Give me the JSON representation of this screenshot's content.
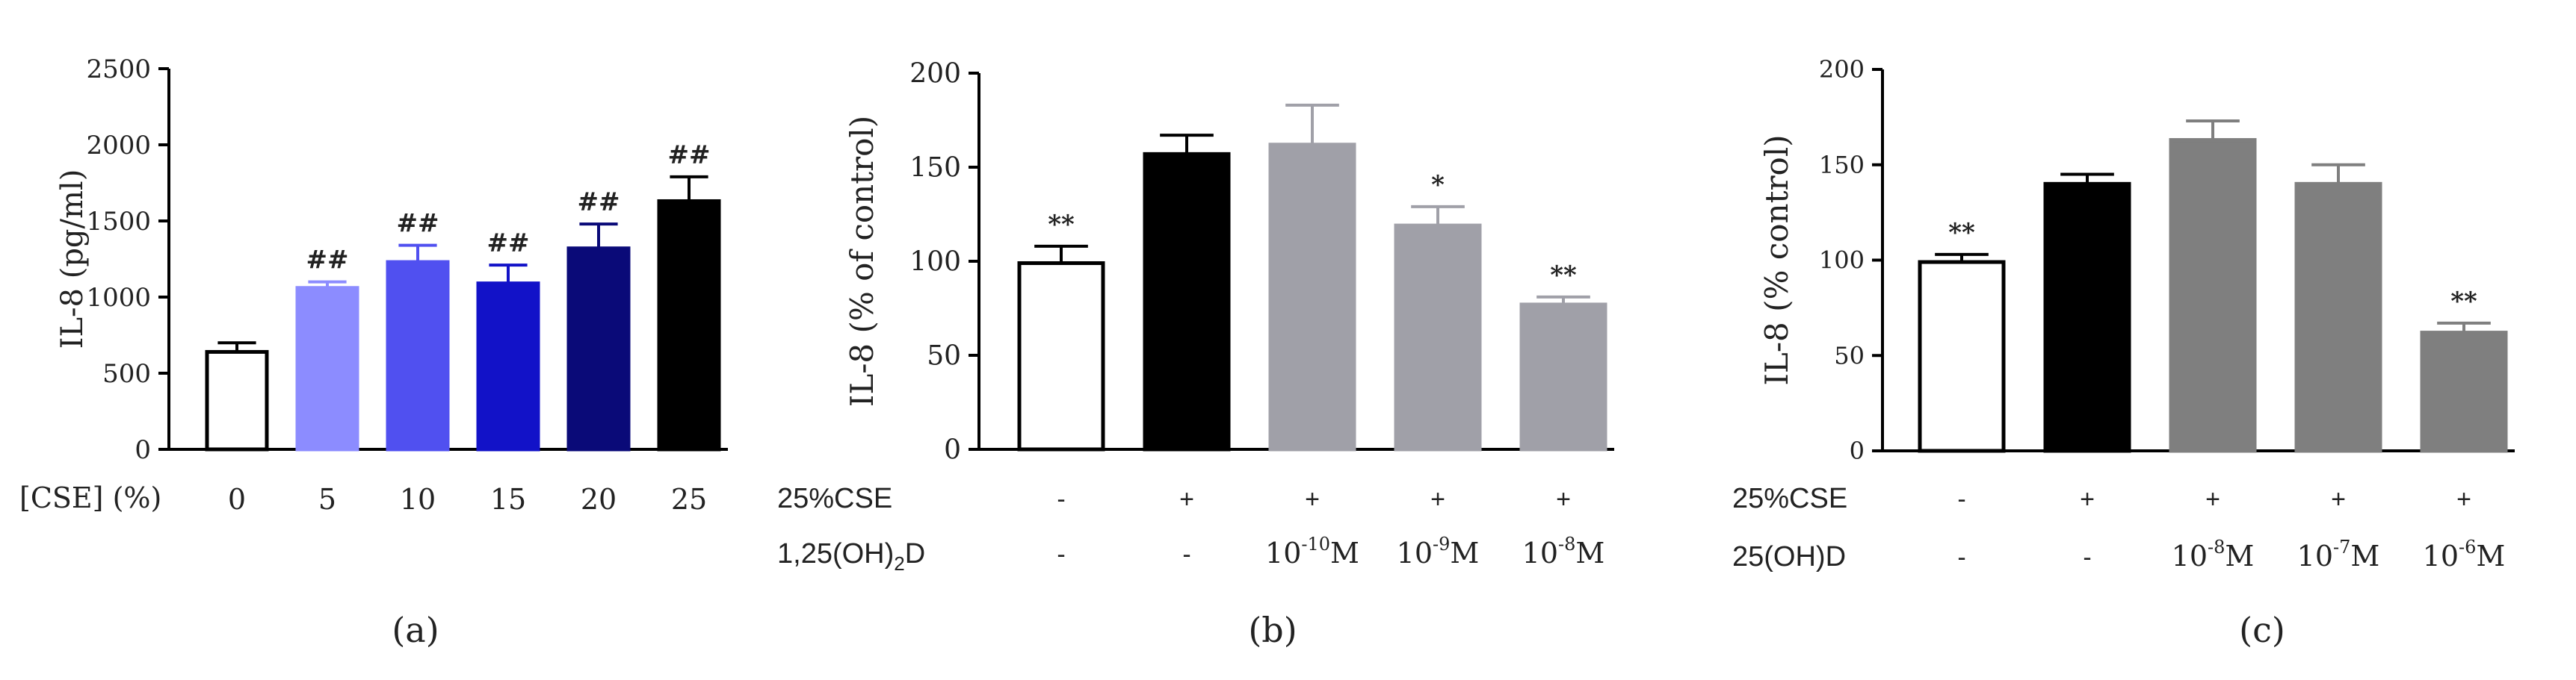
{
  "chart_data": [
    {
      "panel": "(a)",
      "type": "bar",
      "ylabel": "IL-8 (pg/ml)",
      "ylim": [
        0,
        2500
      ],
      "yticks": [
        "0",
        "500",
        "1000",
        "1500",
        "2000",
        "2500"
      ],
      "ytick_values": [
        0,
        500,
        1000,
        1500,
        2000,
        2500
      ],
      "xlabel": "[CSE] (%)",
      "categories": [
        "0",
        "5",
        "10",
        "15",
        "20",
        "25"
      ],
      "values": [
        640,
        1060,
        1230,
        1090,
        1320,
        1630
      ],
      "errors": [
        60,
        40,
        110,
        120,
        160,
        160
      ],
      "fills": [
        "#ffffff",
        "#8c8cff",
        "#5050f0",
        "#1212c8",
        "#0a0a78",
        "#000000"
      ],
      "annotations": [
        "",
        "##",
        "##",
        "##",
        "##",
        "##"
      ]
    },
    {
      "panel": "(b)",
      "type": "bar",
      "ylabel": "IL-8 (% of control)",
      "ylim": [
        0,
        200
      ],
      "yticks": [
        "0",
        "50",
        "100",
        "150",
        "200"
      ],
      "ytick_values": [
        0,
        50,
        100,
        150,
        200
      ],
      "row1_label": "25%CSE",
      "row1": [
        "-",
        "+",
        "+",
        "+",
        "+"
      ],
      "row2_label": "1,25(OH)",
      "row2_label_sub": "2",
      "row2_label_end": "D",
      "row2": [
        {
          "text": "-"
        },
        {
          "text": "-"
        },
        {
          "base": "10",
          "exp": "-10",
          "unit": "M"
        },
        {
          "base": "10",
          "exp": "-9",
          "unit": "M"
        },
        {
          "base": "10",
          "exp": "-8",
          "unit": "M"
        }
      ],
      "values": [
        99,
        157,
        162,
        119,
        77
      ],
      "errors": [
        9,
        10,
        21,
        10,
        4
      ],
      "fills": [
        "#ffffff",
        "#000000",
        "#a0a0a8",
        "#a0a0a8",
        "#a0a0a8"
      ],
      "annotations": [
        "**",
        "",
        "",
        "*",
        "**"
      ]
    },
    {
      "panel": "(c)",
      "type": "bar",
      "ylabel": "IL-8 (% control)",
      "ylim": [
        0,
        200
      ],
      "yticks": [
        "0",
        "50",
        "100",
        "150",
        "200"
      ],
      "ytick_values": [
        0,
        50,
        100,
        150,
        200
      ],
      "row1_label": "25%CSE",
      "row1": [
        "-",
        "+",
        "+",
        "+",
        "+"
      ],
      "row2_label": "25(OH)D",
      "row2": [
        {
          "text": "-"
        },
        {
          "text": "-"
        },
        {
          "base": "10",
          "exp": "-8",
          "unit": "M"
        },
        {
          "base": "10",
          "exp": "-7",
          "unit": "M"
        },
        {
          "base": "10",
          "exp": "-6",
          "unit": "M"
        }
      ],
      "values": [
        99,
        140,
        163,
        140,
        62
      ],
      "errors": [
        4,
        5,
        10,
        10,
        5
      ],
      "fills": [
        "#ffffff",
        "#000000",
        "#7f7f7f",
        "#7f7f7f",
        "#7f7f7f"
      ],
      "annotations": [
        "**",
        "",
        "",
        "",
        "**"
      ]
    }
  ]
}
